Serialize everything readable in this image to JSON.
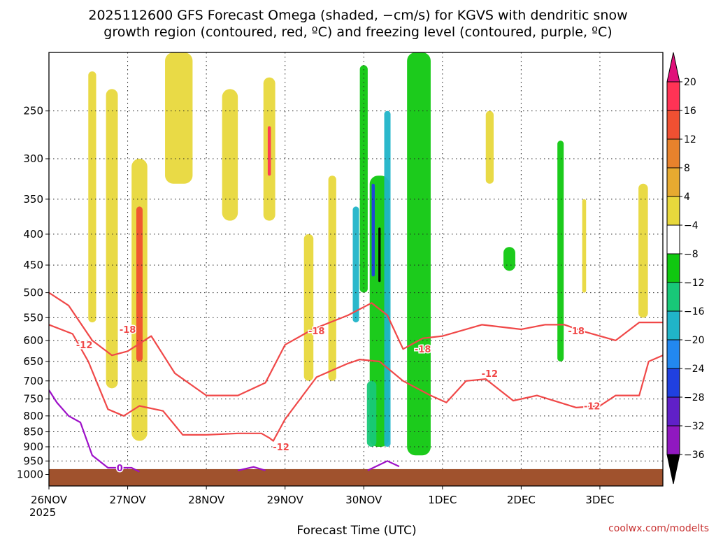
{
  "chart_data": {
    "type": "heatmap",
    "title_line1": "2025112600 GFS Forecast Omega (shaded, −cm/s) for KGVS with dendritic snow",
    "title_line2": "growth region (contoured, red, ºC) and freezing level (contoured, purple, ºC)",
    "xlabel": "Forecast Time (UTC)",
    "credit": "coolwx.com/modelts",
    "x_tick_labels": [
      "26NOV",
      "27NOV",
      "28NOV",
      "29NOV",
      "30NOV",
      "1DEC",
      "2DEC",
      "3DEC"
    ],
    "x_start_year": "2025",
    "x_range_days": [
      0,
      7.8
    ],
    "y_tick_labels": [
      "250",
      "300",
      "350",
      "400",
      "450",
      "500",
      "550",
      "600",
      "650",
      "700",
      "750",
      "800",
      "850",
      "900",
      "950",
      "1000"
    ],
    "y_range_hpa": [
      200,
      1000
    ],
    "y_scale": "log-pressure",
    "grid": true,
    "colorbar": {
      "labels": [
        "20",
        "16",
        "12",
        "8",
        "4",
        "−4",
        "−8",
        "−12",
        "−16",
        "−20",
        "−24",
        "−28",
        "−32",
        "−36"
      ],
      "colors": [
        "#ff3355",
        "#f05032",
        "#e8822c",
        "#e6aa30",
        "#e8d83c",
        "#ffffff",
        "#10c810",
        "#18c878",
        "#20b4c8",
        "#2288f0",
        "#2040e0",
        "#6020c8",
        "#9018c0",
        "#a0a0a0",
        "#000000"
      ],
      "top_arrow_color": "#e0107a",
      "bottom_arrow_color": "#000000"
    },
    "omega_regions": [
      {
        "day": 0.55,
        "p_top": 215,
        "p_bot": 560,
        "w": 0.1,
        "value": 6
      },
      {
        "day": 0.8,
        "p_top": 230,
        "p_bot": 720,
        "w": 0.15,
        "value": 5
      },
      {
        "day": 1.15,
        "p_top": 300,
        "p_bot": 880,
        "w": 0.2,
        "value": 6
      },
      {
        "day": 1.15,
        "p_top": 360,
        "p_bot": 650,
        "w": 0.08,
        "value": 12
      },
      {
        "day": 1.65,
        "p_top": 200,
        "p_bot": 330,
        "w": 0.35,
        "value": 5
      },
      {
        "day": 2.3,
        "p_top": 230,
        "p_bot": 380,
        "w": 0.2,
        "value": 5
      },
      {
        "day": 2.8,
        "p_top": 220,
        "p_bot": 380,
        "w": 0.15,
        "value": 6
      },
      {
        "day": 2.8,
        "p_top": 265,
        "p_bot": 320,
        "w": 0.04,
        "value": 16
      },
      {
        "day": 3.3,
        "p_top": 400,
        "p_bot": 700,
        "w": 0.12,
        "value": 5
      },
      {
        "day": 3.6,
        "p_top": 320,
        "p_bot": 700,
        "w": 0.1,
        "value": 5
      },
      {
        "day": 4.7,
        "p_top": 200,
        "p_bot": 930,
        "w": 0.3,
        "value": -8
      },
      {
        "day": 4.2,
        "p_top": 320,
        "p_bot": 900,
        "w": 0.25,
        "value": -6
      },
      {
        "day": 4.0,
        "p_top": 210,
        "p_bot": 500,
        "w": 0.1,
        "value": -6
      },
      {
        "day": 3.9,
        "p_top": 360,
        "p_bot": 560,
        "w": 0.08,
        "value": -16
      },
      {
        "day": 4.3,
        "p_top": 250,
        "p_bot": 900,
        "w": 0.08,
        "value": -14
      },
      {
        "day": 4.12,
        "p_top": 330,
        "p_bot": 470,
        "w": 0.04,
        "value": -22
      },
      {
        "day": 4.2,
        "p_top": 390,
        "p_bot": 480,
        "w": 0.03,
        "value": -36
      },
      {
        "day": 4.1,
        "p_top": 700,
        "p_bot": 900,
        "w": 0.12,
        "value": -12
      },
      {
        "day": 5.6,
        "p_top": 250,
        "p_bot": 330,
        "w": 0.1,
        "value": 5
      },
      {
        "day": 5.85,
        "p_top": 420,
        "p_bot": 460,
        "w": 0.15,
        "value": -7
      },
      {
        "day": 6.5,
        "p_top": 280,
        "p_bot": 650,
        "w": 0.08,
        "value": -7
      },
      {
        "day": 6.8,
        "p_top": 350,
        "p_bot": 500,
        "w": 0.05,
        "value": 5
      },
      {
        "day": 7.55,
        "p_top": 330,
        "p_bot": 550,
        "w": 0.12,
        "value": 5
      }
    ],
    "dgz_contours": [
      {
        "label": "-12",
        "points": [
          [
            0,
            565
          ],
          [
            0.3,
            585
          ],
          [
            0.5,
            650
          ],
          [
            0.75,
            780
          ],
          [
            0.95,
            800
          ],
          [
            1.15,
            770
          ],
          [
            1.45,
            785
          ],
          [
            1.7,
            860
          ],
          [
            2.0,
            860
          ],
          [
            2.4,
            855
          ],
          [
            2.7,
            855
          ],
          [
            2.8,
            870
          ],
          [
            2.85,
            880
          ],
          [
            3.0,
            810
          ],
          [
            3.4,
            690
          ],
          [
            3.8,
            655
          ],
          [
            3.95,
            645
          ],
          [
            4.2,
            650
          ],
          [
            4.5,
            700
          ],
          [
            4.85,
            740
          ],
          [
            5.05,
            760
          ],
          [
            5.3,
            700
          ],
          [
            5.55,
            695
          ],
          [
            5.9,
            755
          ],
          [
            6.2,
            740
          ],
          [
            6.7,
            775
          ],
          [
            7.0,
            770
          ],
          [
            7.2,
            740
          ],
          [
            7.5,
            740
          ],
          [
            7.62,
            650
          ],
          [
            7.8,
            635
          ]
        ]
      },
      {
        "label": "-18",
        "points": [
          [
            0,
            500
          ],
          [
            0.25,
            525
          ],
          [
            0.55,
            600
          ],
          [
            0.8,
            635
          ],
          [
            1.0,
            625
          ],
          [
            1.3,
            590
          ],
          [
            1.6,
            680
          ],
          [
            2.0,
            740
          ],
          [
            2.4,
            740
          ],
          [
            2.75,
            705
          ],
          [
            3.0,
            610
          ],
          [
            3.35,
            575
          ],
          [
            3.8,
            545
          ],
          [
            4.1,
            520
          ],
          [
            4.3,
            545
          ],
          [
            4.5,
            620
          ],
          [
            4.75,
            595
          ],
          [
            5.0,
            590
          ],
          [
            5.5,
            565
          ],
          [
            6.0,
            575
          ],
          [
            6.3,
            565
          ],
          [
            6.55,
            565
          ],
          [
            6.8,
            580
          ],
          [
            7.2,
            600
          ],
          [
            7.5,
            560
          ],
          [
            7.8,
            560
          ]
        ]
      }
    ],
    "freezing_contour": {
      "label": "0",
      "points": [
        [
          0,
          725
        ],
        [
          0.1,
          760
        ],
        [
          0.25,
          800
        ],
        [
          0.4,
          820
        ],
        [
          0.55,
          930
        ],
        [
          0.75,
          975
        ],
        [
          1.05,
          975
        ],
        [
          1.15,
          990
        ]
      ]
    },
    "contour_label_texts": [
      "-12",
      "-18",
      "-18",
      "-18",
      "-12",
      "-12",
      "-12",
      "-18",
      "0"
    ]
  }
}
